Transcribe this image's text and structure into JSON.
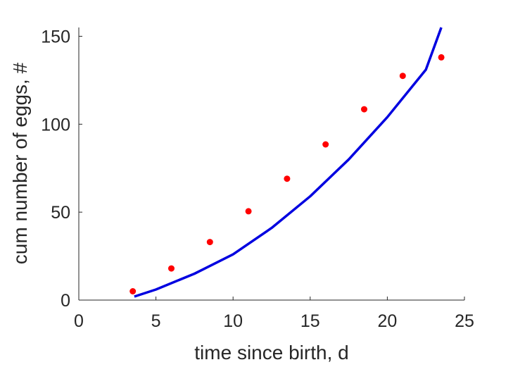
{
  "chart_data": {
    "type": "scatter",
    "xlabel": "time since birth, d",
    "ylabel": "cum number of eggs, #",
    "xlim": [
      0,
      25
    ],
    "ylim": [
      0,
      155
    ],
    "xticks": [
      0,
      5,
      10,
      15,
      20,
      25
    ],
    "yticks": [
      0,
      50,
      100,
      150
    ],
    "grid": false,
    "series": [
      {
        "type": "scatter",
        "color": "#ff0000",
        "x": [
          3.5,
          6,
          8.5,
          11,
          13.5,
          16,
          18.5,
          21,
          23.5
        ],
        "y": [
          5,
          18,
          33,
          50.5,
          69,
          88.5,
          108.5,
          127.5,
          138
        ]
      },
      {
        "type": "line",
        "color": "#0000e0",
        "x": [
          3.6,
          5,
          7.5,
          10,
          12.5,
          15,
          17.5,
          20,
          22.5,
          23.5
        ],
        "y": [
          2,
          6,
          15,
          26,
          41,
          59,
          80,
          104,
          131,
          155
        ]
      }
    ]
  }
}
